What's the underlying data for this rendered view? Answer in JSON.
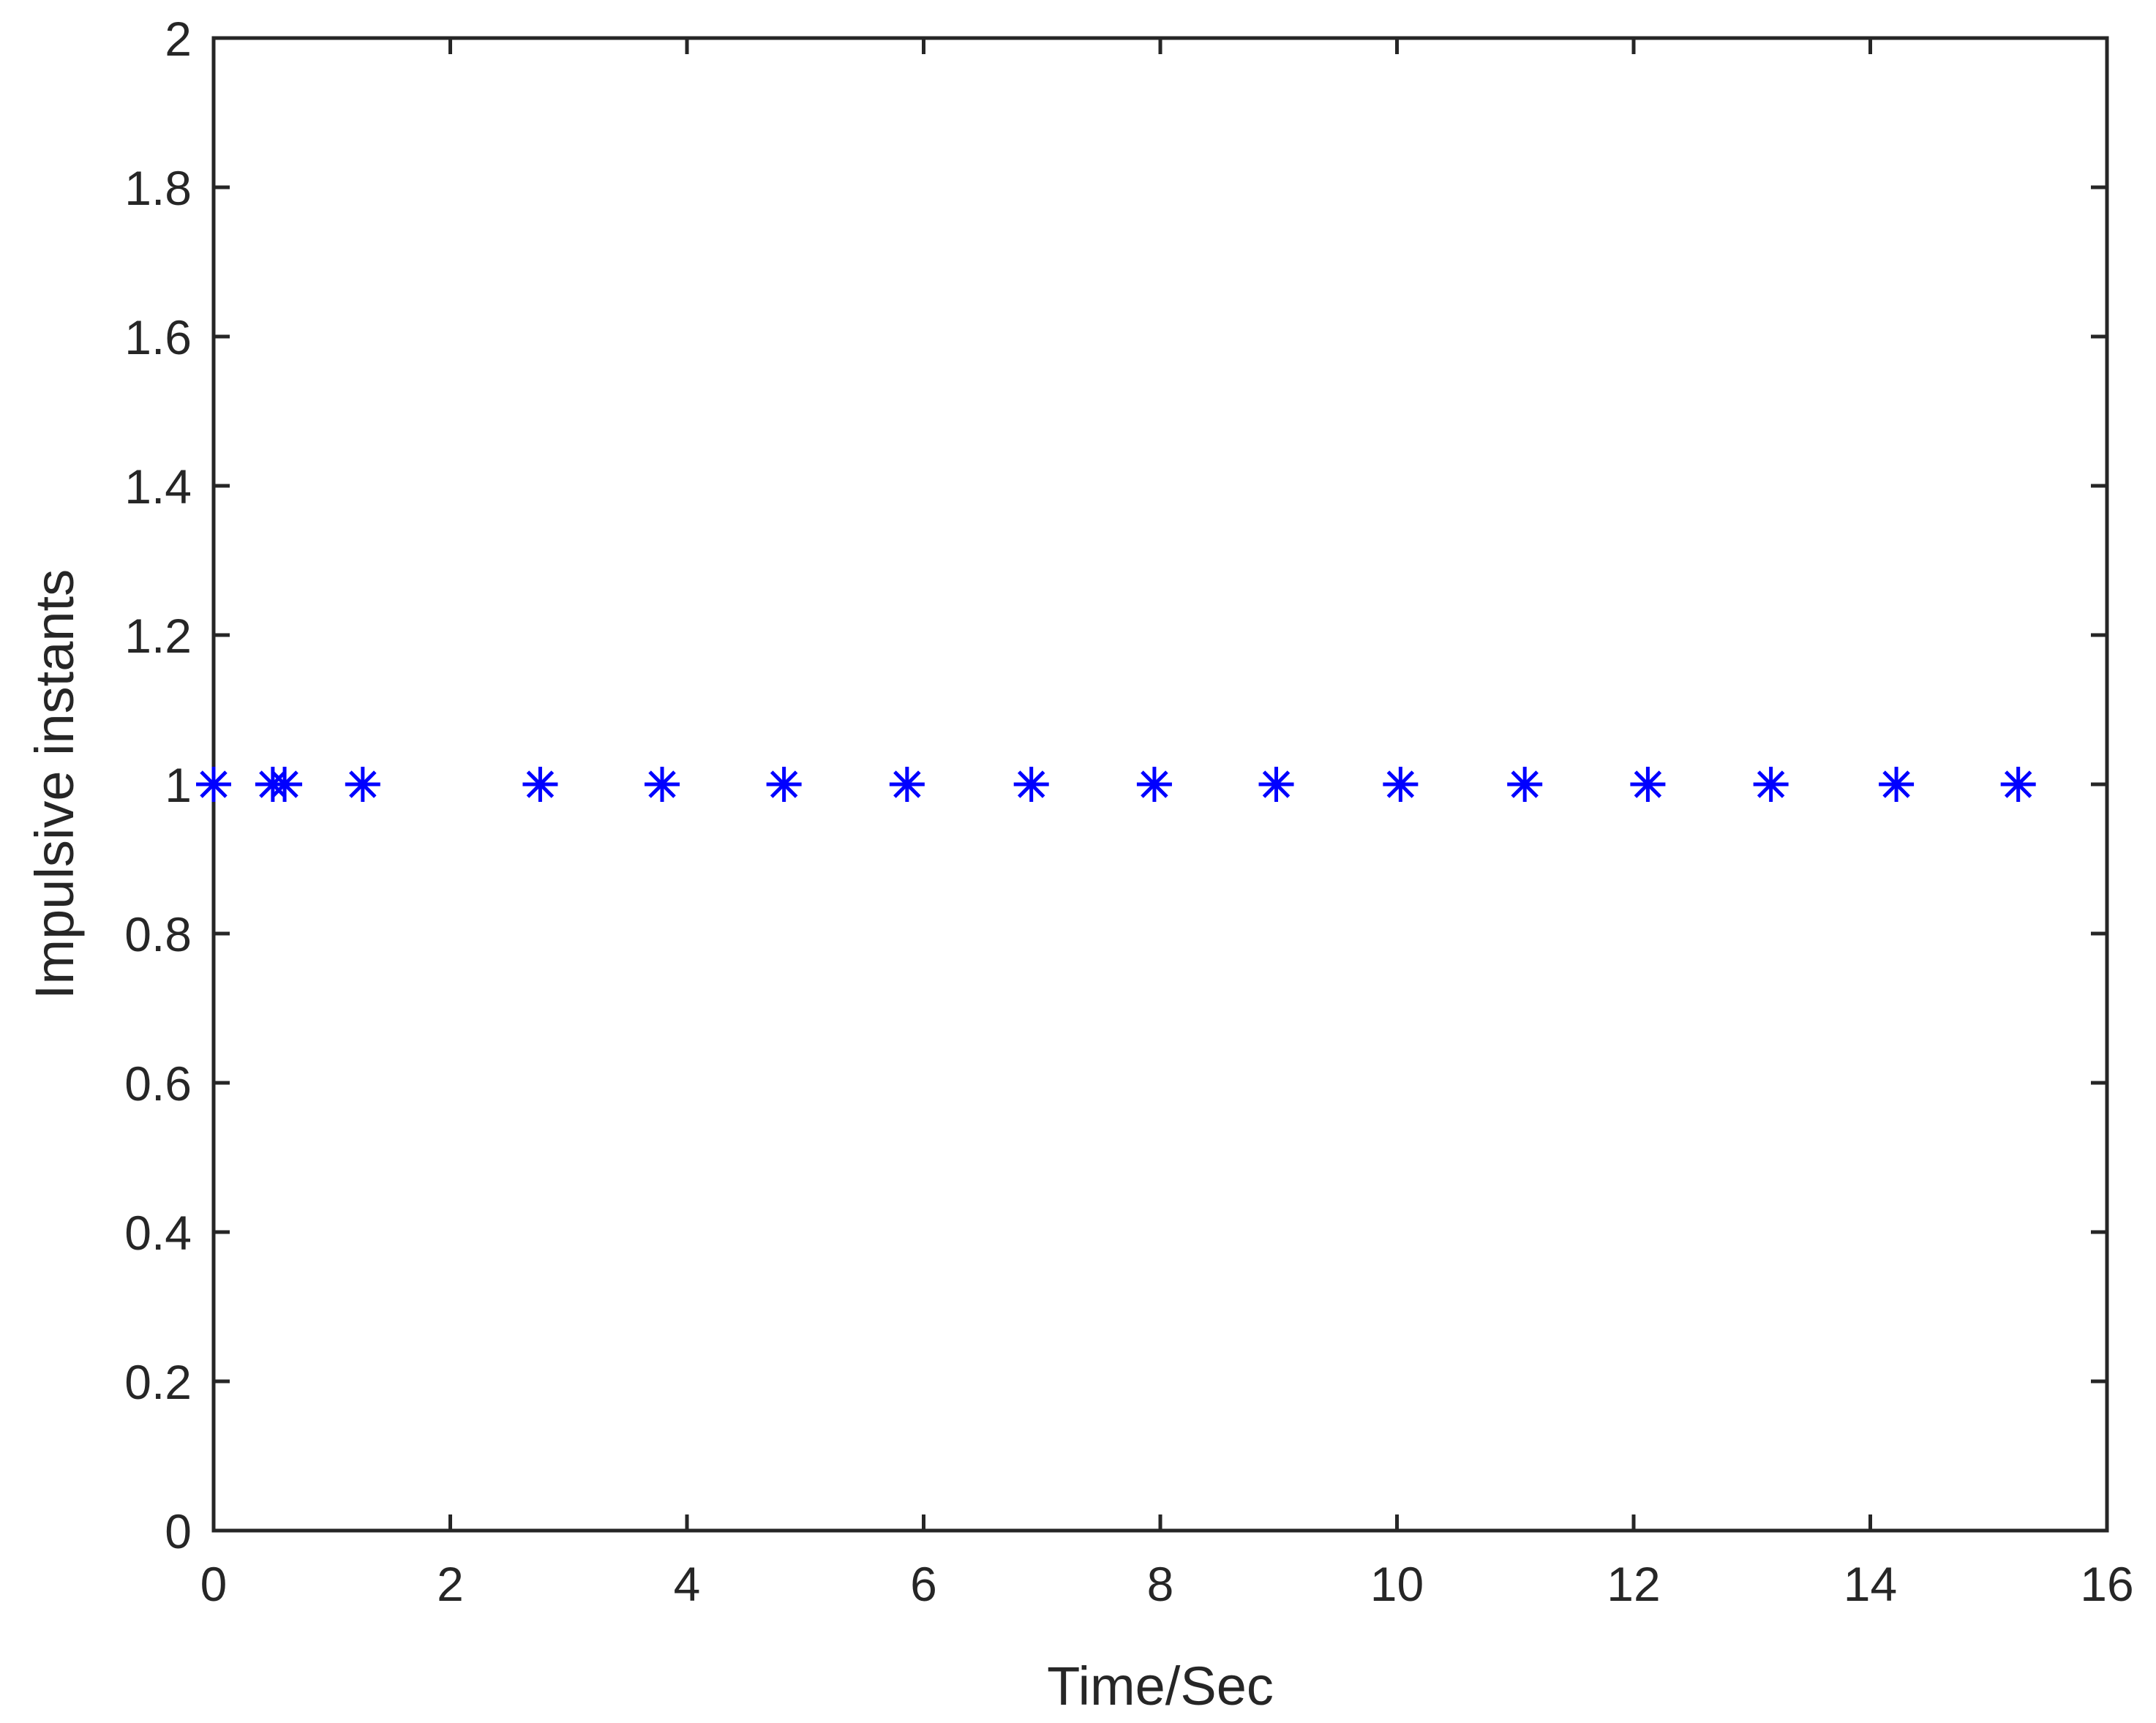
{
  "chart_data": {
    "type": "scatter",
    "title": "",
    "xlabel": "Time/Sec",
    "ylabel": "Impulsive instants",
    "xlim": [
      0,
      16
    ],
    "ylim": [
      0,
      2
    ],
    "grid": false,
    "legend": false,
    "marker": "asterisk",
    "colors": {
      "marker": "#0000ff",
      "axes": "#262626",
      "background": "#ffffff"
    },
    "xticks": [
      0,
      2,
      4,
      6,
      8,
      10,
      12,
      14,
      16
    ],
    "xtick_labels": [
      "0",
      "2",
      "4",
      "6",
      "8",
      "10",
      "12",
      "14",
      "16"
    ],
    "yticks": [
      0,
      0.2,
      0.4,
      0.6,
      0.8,
      1,
      1.2,
      1.4,
      1.6,
      1.8,
      2
    ],
    "ytick_labels": [
      "0",
      "0.2",
      "0.4",
      "0.6",
      "0.8",
      "1",
      "1.2",
      "1.4",
      "1.6",
      "1.8",
      "2"
    ],
    "series": [
      {
        "x": [
          0,
          0.5,
          0.6,
          1.26,
          2.76,
          3.79,
          4.82,
          5.86,
          6.91,
          7.95,
          8.98,
          10.03,
          11.08,
          12.12,
          13.16,
          14.22,
          15.25
        ],
        "y": [
          1,
          1,
          1,
          1,
          1,
          1,
          1,
          1,
          1,
          1,
          1,
          1,
          1,
          1,
          1,
          1,
          1
        ]
      }
    ]
  }
}
